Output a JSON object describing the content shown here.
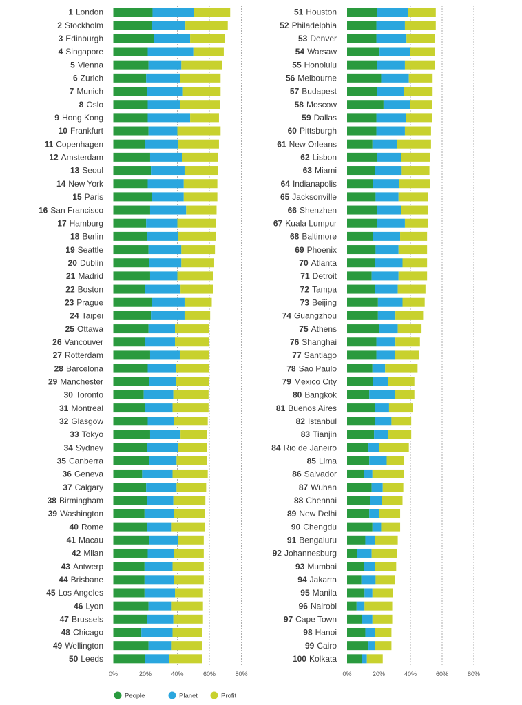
{
  "chart_data": {
    "type": "bar",
    "orientation": "horizontal",
    "stacked": true,
    "xlim": [
      0,
      80
    ],
    "ticks": [
      "0%",
      "20%",
      "40%",
      "60%",
      "80%"
    ],
    "tick_values": [
      0,
      20,
      40,
      60,
      80
    ],
    "gridlines_at": [
      40,
      60,
      80
    ],
    "legend": [
      "People",
      "Planet",
      "Profit"
    ],
    "legend_position": "bottom",
    "colors": {
      "People": "#2a9a3e",
      "Planet": "#2aa6de",
      "Profit": "#c8d12e"
    },
    "left_panel": [
      {
        "rank": 1,
        "city": "London",
        "people": 24.5,
        "planet": 26,
        "profit": 22.5
      },
      {
        "rank": 2,
        "city": "Stockholm",
        "people": 24,
        "planet": 21,
        "profit": 26.5
      },
      {
        "rank": 3,
        "city": "Edinburgh",
        "people": 25.5,
        "planet": 22.5,
        "profit": 21.5
      },
      {
        "rank": 4,
        "city": "Singapore",
        "people": 21.5,
        "planet": 28.5,
        "profit": 19
      },
      {
        "rank": 5,
        "city": "Vienna",
        "people": 22,
        "planet": 20.5,
        "profit": 25.5
      },
      {
        "rank": 6,
        "city": "Zurich",
        "people": 20.5,
        "planet": 21,
        "profit": 25.5
      },
      {
        "rank": 7,
        "city": "Munich",
        "people": 21,
        "planet": 22.5,
        "profit": 23.5
      },
      {
        "rank": 8,
        "city": "Oslo",
        "people": 21.5,
        "planet": 20,
        "profit": 25
      },
      {
        "rank": 9,
        "city": "Hong Kong",
        "people": 21.5,
        "planet": 26.5,
        "profit": 18
      },
      {
        "rank": 10,
        "city": "Frankfurt",
        "people": 22,
        "planet": 18,
        "profit": 27
      },
      {
        "rank": 11,
        "city": "Copenhagen",
        "people": 20,
        "planet": 20.5,
        "profit": 25.5
      },
      {
        "rank": 12,
        "city": "Amsterdam",
        "people": 23,
        "planet": 20,
        "profit": 22.5
      },
      {
        "rank": 13,
        "city": "Seoul",
        "people": 23.5,
        "planet": 21,
        "profit": 21
      },
      {
        "rank": 14,
        "city": "New York",
        "people": 21.5,
        "planet": 22.5,
        "profit": 21
      },
      {
        "rank": 15,
        "city": "Paris",
        "people": 24,
        "planet": 20,
        "profit": 21
      },
      {
        "rank": 16,
        "city": "San Francisco",
        "people": 23,
        "planet": 22.5,
        "profit": 19
      },
      {
        "rank": 17,
        "city": "Hamburg",
        "people": 20.5,
        "planet": 19.5,
        "profit": 24
      },
      {
        "rank": 18,
        "city": "Berlin",
        "people": 21,
        "planet": 19.5,
        "profit": 23.5
      },
      {
        "rank": 19,
        "city": "Seattle",
        "people": 22,
        "planet": 20.5,
        "profit": 21
      },
      {
        "rank": 20,
        "city": "Dublin",
        "people": 22.5,
        "planet": 20,
        "profit": 20.5
      },
      {
        "rank": 21,
        "city": "Madrid",
        "people": 23,
        "planet": 17,
        "profit": 22.5
      },
      {
        "rank": 22,
        "city": "Boston",
        "people": 20,
        "planet": 22,
        "profit": 20.5
      },
      {
        "rank": 23,
        "city": "Prague",
        "people": 24,
        "planet": 20.5,
        "profit": 17
      },
      {
        "rank": 24,
        "city": "Taipei",
        "people": 23.5,
        "planet": 21,
        "profit": 16
      },
      {
        "rank": 25,
        "city": "Ottawa",
        "people": 22,
        "planet": 16.5,
        "profit": 21.5
      },
      {
        "rank": 26,
        "city": "Vancouver",
        "people": 20,
        "planet": 18.5,
        "profit": 21.5
      },
      {
        "rank": 27,
        "city": "Rotterdam",
        "people": 23,
        "planet": 18.5,
        "profit": 18.5
      },
      {
        "rank": 28,
        "city": "Barcelona",
        "people": 21.5,
        "planet": 17.5,
        "profit": 21
      },
      {
        "rank": 29,
        "city": "Manchester",
        "people": 22.5,
        "planet": 16.5,
        "profit": 21
      },
      {
        "rank": 30,
        "city": "Toronto",
        "people": 19,
        "planet": 18.5,
        "profit": 22
      },
      {
        "rank": 31,
        "city": "Montreal",
        "people": 20,
        "planet": 17,
        "profit": 22.5
      },
      {
        "rank": 32,
        "city": "Glasgow",
        "people": 21.5,
        "planet": 16.5,
        "profit": 21
      },
      {
        "rank": 33,
        "city": "Tokyo",
        "people": 23,
        "planet": 19,
        "profit": 16.5
      },
      {
        "rank": 34,
        "city": "Sydney",
        "people": 21,
        "planet": 19.5,
        "profit": 18
      },
      {
        "rank": 35,
        "city": "Canberra",
        "people": 22.5,
        "planet": 17,
        "profit": 19
      },
      {
        "rank": 36,
        "city": "Geneva",
        "people": 18,
        "planet": 19,
        "profit": 22
      },
      {
        "rank": 37,
        "city": "Calgary",
        "people": 20.5,
        "planet": 19,
        "profit": 18.5
      },
      {
        "rank": 38,
        "city": "Birmingham",
        "people": 21,
        "planet": 16.5,
        "profit": 20
      },
      {
        "rank": 39,
        "city": "Washington",
        "people": 19.5,
        "planet": 18.5,
        "profit": 19
      },
      {
        "rank": 40,
        "city": "Rome",
        "people": 21,
        "planet": 15.5,
        "profit": 20.5
      },
      {
        "rank": 41,
        "city": "Macau",
        "people": 22.5,
        "planet": 18,
        "profit": 16
      },
      {
        "rank": 42,
        "city": "Milan",
        "people": 21.5,
        "planet": 16.5,
        "profit": 18.5
      },
      {
        "rank": 43,
        "city": "Antwerp",
        "people": 19.5,
        "planet": 17.5,
        "profit": 19.5
      },
      {
        "rank": 44,
        "city": "Brisbane",
        "people": 19.5,
        "planet": 18.5,
        "profit": 18.5
      },
      {
        "rank": 45,
        "city": "Los Angeles",
        "people": 19.5,
        "planet": 19,
        "profit": 17.5
      },
      {
        "rank": 46,
        "city": "Lyon",
        "people": 22,
        "planet": 14.5,
        "profit": 19.5
      },
      {
        "rank": 47,
        "city": "Brussels",
        "people": 21,
        "planet": 16.5,
        "profit": 18.5
      },
      {
        "rank": 48,
        "city": "Chicago",
        "people": 17.5,
        "planet": 19.5,
        "profit": 18.5
      },
      {
        "rank": 49,
        "city": "Wellington",
        "people": 22,
        "planet": 14.5,
        "profit": 19
      },
      {
        "rank": 50,
        "city": "Leeds",
        "people": 20,
        "planet": 15,
        "profit": 20.5
      }
    ],
    "right_panel": [
      {
        "rank": 51,
        "city": "Houston",
        "people": 19,
        "planet": 19.5,
        "profit": 17.5
      },
      {
        "rank": 52,
        "city": "Philadelphia",
        "people": 18.5,
        "planet": 18,
        "profit": 19.5
      },
      {
        "rank": 53,
        "city": "Denver",
        "people": 18.5,
        "planet": 19,
        "profit": 18
      },
      {
        "rank": 54,
        "city": "Warsaw",
        "people": 20.5,
        "planet": 19.5,
        "profit": 15.5
      },
      {
        "rank": 55,
        "city": "Honolulu",
        "people": 19,
        "planet": 17.5,
        "profit": 19
      },
      {
        "rank": 56,
        "city": "Melbourne",
        "people": 21.5,
        "planet": 17.5,
        "profit": 15
      },
      {
        "rank": 57,
        "city": "Budapest",
        "people": 19,
        "planet": 17,
        "profit": 18
      },
      {
        "rank": 58,
        "city": "Moscow",
        "people": 23,
        "planet": 17,
        "profit": 13.5
      },
      {
        "rank": 59,
        "city": "Dallas",
        "people": 18.5,
        "planet": 18.5,
        "profit": 16.5
      },
      {
        "rank": 60,
        "city": "Pittsburgh",
        "people": 18.5,
        "planet": 18,
        "profit": 16.5
      },
      {
        "rank": 61,
        "city": "New Orleans",
        "people": 16,
        "planet": 15.5,
        "profit": 21.5
      },
      {
        "rank": 62,
        "city": "Lisbon",
        "people": 19,
        "planet": 15,
        "profit": 18.5
      },
      {
        "rank": 63,
        "city": "Miami",
        "people": 17.5,
        "planet": 17,
        "profit": 17.5
      },
      {
        "rank": 64,
        "city": "Indianapolis",
        "people": 16.5,
        "planet": 16.5,
        "profit": 19.5
      },
      {
        "rank": 65,
        "city": "Jacksonville",
        "people": 18,
        "planet": 14.5,
        "profit": 18.5
      },
      {
        "rank": 66,
        "city": "Shenzhen",
        "people": 19,
        "planet": 15,
        "profit": 17
      },
      {
        "rank": 67,
        "city": "Kuala Lumpur",
        "people": 19,
        "planet": 17.5,
        "profit": 14.5
      },
      {
        "rank": 68,
        "city": "Baltimore",
        "people": 16.5,
        "planet": 17,
        "profit": 17
      },
      {
        "rank": 69,
        "city": "Phoenix",
        "people": 18,
        "planet": 14.5,
        "profit": 18
      },
      {
        "rank": 70,
        "city": "Atlanta",
        "people": 17.5,
        "planet": 17.5,
        "profit": 15.5
      },
      {
        "rank": 71,
        "city": "Detroit",
        "people": 15.5,
        "planet": 17,
        "profit": 18
      },
      {
        "rank": 72,
        "city": "Tampa",
        "people": 17.5,
        "planet": 14.5,
        "profit": 17.5
      },
      {
        "rank": 73,
        "city": "Beijing",
        "people": 19.5,
        "planet": 15.5,
        "profit": 14
      },
      {
        "rank": 74,
        "city": "Guangzhou",
        "people": 19.5,
        "planet": 11,
        "profit": 17.5
      },
      {
        "rank": 75,
        "city": "Athens",
        "people": 20,
        "planet": 12,
        "profit": 15
      },
      {
        "rank": 76,
        "city": "Shanghai",
        "people": 18.5,
        "planet": 12,
        "profit": 15.5
      },
      {
        "rank": 77,
        "city": "Santiago",
        "people": 18.5,
        "planet": 11.5,
        "profit": 15.5
      },
      {
        "rank": 78,
        "city": "Sao Paulo",
        "people": 16,
        "planet": 8,
        "profit": 20.5
      },
      {
        "rank": 79,
        "city": "Mexico City",
        "people": 16.5,
        "planet": 9.5,
        "profit": 16.5
      },
      {
        "rank": 80,
        "city": "Bangkok",
        "people": 14,
        "planet": 16,
        "profit": 12.5
      },
      {
        "rank": 81,
        "city": "Buenos Aires",
        "people": 17.5,
        "planet": 9,
        "profit": 15
      },
      {
        "rank": 82,
        "city": "Istanbul",
        "people": 17.5,
        "planet": 10.5,
        "profit": 12.5
      },
      {
        "rank": 83,
        "city": "Tianjin",
        "people": 17,
        "planet": 9,
        "profit": 14.5
      },
      {
        "rank": 84,
        "city": "Rio de Janeiro",
        "people": 13.5,
        "planet": 6.5,
        "profit": 19
      },
      {
        "rank": 85,
        "city": "Lima",
        "people": 14,
        "planet": 11,
        "profit": 11
      },
      {
        "rank": 86,
        "city": "Salvador",
        "people": 10.5,
        "planet": 5.5,
        "profit": 20
      },
      {
        "rank": 87,
        "city": "Wuhan",
        "people": 15.5,
        "planet": 7,
        "profit": 13
      },
      {
        "rank": 88,
        "city": "Chennai",
        "people": 14.5,
        "planet": 7.5,
        "profit": 13
      },
      {
        "rank": 89,
        "city": "New Delhi",
        "people": 14,
        "planet": 6,
        "profit": 13.5
      },
      {
        "rank": 90,
        "city": "Chengdu",
        "people": 16,
        "planet": 5.5,
        "profit": 12
      },
      {
        "rank": 91,
        "city": "Bengaluru",
        "people": 11.5,
        "planet": 6,
        "profit": 14.5
      },
      {
        "rank": 92,
        "city": "Johannesburg",
        "people": 6.5,
        "planet": 9,
        "profit": 16
      },
      {
        "rank": 93,
        "city": "Mumbai",
        "people": 10.5,
        "planet": 7,
        "profit": 13.5
      },
      {
        "rank": 94,
        "city": "Jakarta",
        "people": 9,
        "planet": 9,
        "profit": 12
      },
      {
        "rank": 95,
        "city": "Manila",
        "people": 11,
        "planet": 5,
        "profit": 13
      },
      {
        "rank": 96,
        "city": "Nairobi",
        "people": 6,
        "planet": 5,
        "profit": 17.5
      },
      {
        "rank": 97,
        "city": "Cape Town",
        "people": 9.5,
        "planet": 6.5,
        "profit": 12.5
      },
      {
        "rank": 98,
        "city": "Hanoi",
        "people": 11.5,
        "planet": 6,
        "profit": 10.5
      },
      {
        "rank": 99,
        "city": "Cairo",
        "people": 13.5,
        "planet": 4,
        "profit": 10.5
      },
      {
        "rank": 100,
        "city": "Kolkata",
        "people": 9.5,
        "planet": 3,
        "profit": 10
      }
    ]
  }
}
